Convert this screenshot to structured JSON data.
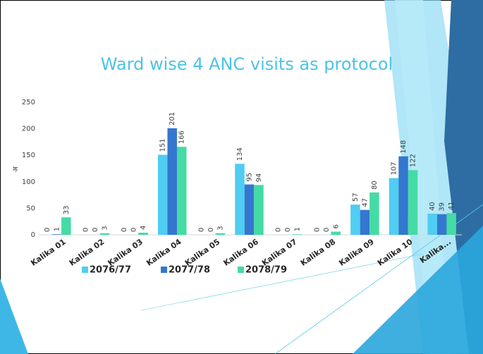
{
  "chart_data": {
    "type": "bar",
    "title": "Ward wise 4 ANC visits as protocol",
    "y_label": "अ",
    "categories": [
      "Kalika 01",
      "Kalika 02",
      "Kalika 03",
      "Kalika 04",
      "Kalika 05",
      "Kalika 06",
      "Kalika 07",
      "Kalika 08",
      "Kalika 09",
      "Kalika 10",
      "Kalika..."
    ],
    "series": [
      {
        "name": "2076/77",
        "color": "#4fcdf2",
        "values": [
          0,
          0,
          0,
          151,
          0,
          134,
          0,
          0,
          57,
          107,
          40
        ]
      },
      {
        "name": "2077/78",
        "color": "#3477cf",
        "values": [
          1,
          0,
          0,
          201,
          0,
          95,
          0,
          0,
          47,
          148,
          39
        ]
      },
      {
        "name": "2078/79",
        "color": "#45dba5",
        "values": [
          33,
          3,
          4,
          166,
          3,
          94,
          1,
          6,
          80,
          122,
          41
        ]
      }
    ],
    "ylim": [
      0,
      250
    ],
    "yticks": [
      0,
      50,
      100,
      150,
      200,
      250
    ],
    "grid": false,
    "legend": "bottom"
  }
}
